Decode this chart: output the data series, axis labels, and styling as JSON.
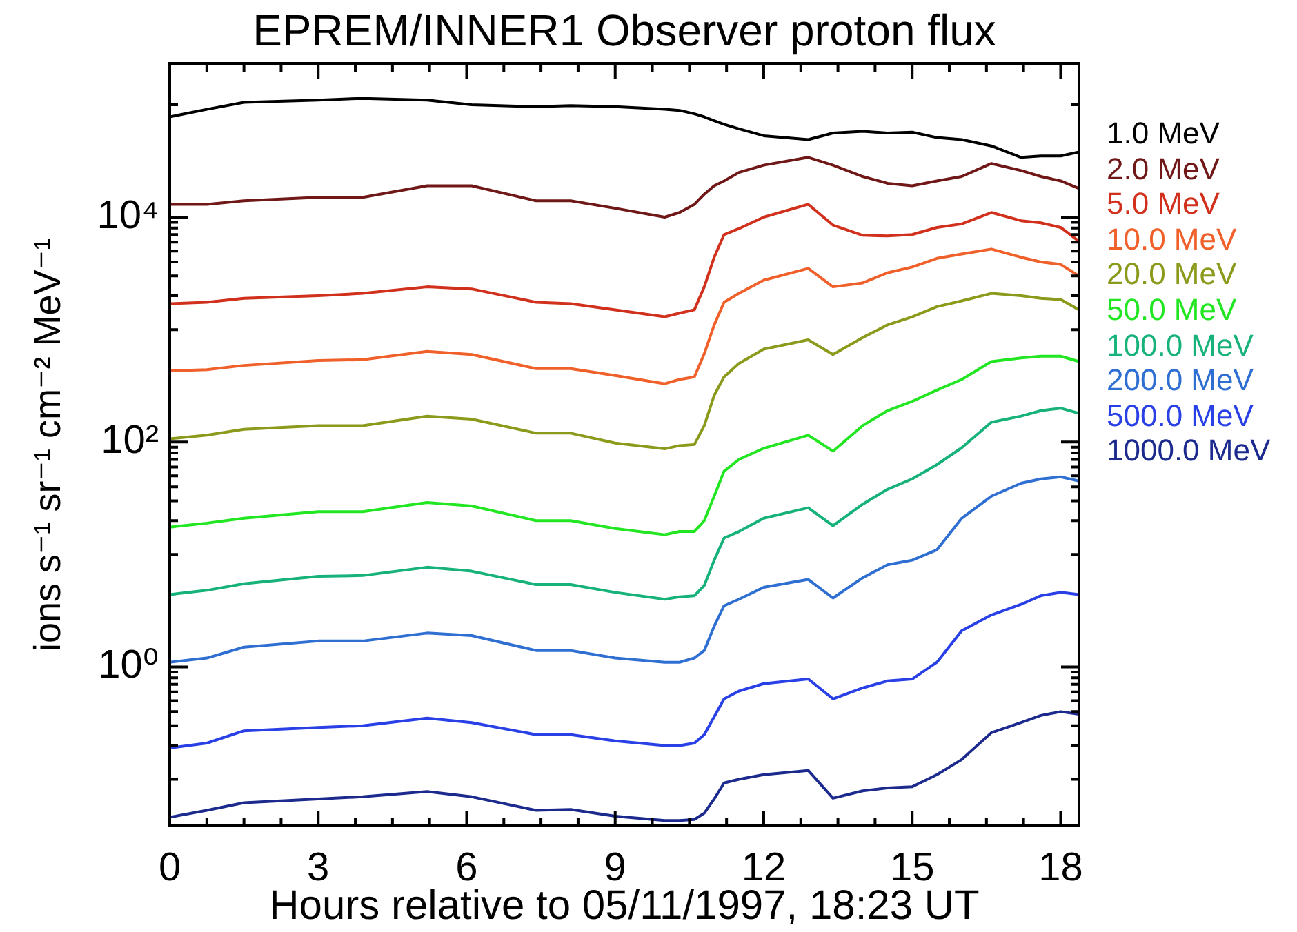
{
  "chart_data": {
    "type": "line",
    "title": "EPREM/INNER1 Observer proton flux",
    "xlabel": "Hours relative to 05/11/1997, 18:23 UT",
    "ylabel": "ions s⁻¹ sr⁻¹ cm⁻² MeV⁻¹",
    "x": [
      0,
      0.75,
      1.5,
      3,
      3.9,
      5.2,
      6.1,
      7.4,
      8.1,
      9,
      10,
      10.3,
      10.6,
      10.8,
      11.0,
      11.2,
      11.5,
      12,
      12.9,
      13.4,
      14,
      14.5,
      15,
      15.5,
      16,
      16.6,
      17.2,
      17.6,
      18,
      18.37
    ],
    "series": [
      {
        "name": "1.0 MeV",
        "color": "#000000",
        "values": [
          78000,
          91000,
          105000,
          110000,
          114000,
          110000,
          100000,
          96000,
          98000,
          96000,
          91000,
          89000,
          83000,
          78000,
          72000,
          67000,
          61000,
          53000,
          49000,
          56000,
          58000,
          56000,
          57000,
          51000,
          49000,
          43000,
          34000,
          35000,
          35000,
          38000
        ]
      },
      {
        "name": "2.0 MeV",
        "color": "#701818",
        "values": [
          13000,
          13000,
          14000,
          15000,
          15000,
          19000,
          19000,
          14000,
          14000,
          12000,
          10000,
          11000,
          13000,
          16000,
          19000,
          21000,
          25000,
          29000,
          34000,
          29000,
          23000,
          20000,
          19000,
          21000,
          23000,
          30000,
          26000,
          23000,
          21000,
          18000
        ]
      },
      {
        "name": "5.0 MeV",
        "color": "#d0301c",
        "values": [
          1700,
          1750,
          1900,
          2000,
          2100,
          2400,
          2300,
          1750,
          1700,
          1500,
          1300,
          1400,
          1500,
          2400,
          4400,
          7000,
          7900,
          10000,
          13000,
          8500,
          6900,
          6800,
          7000,
          8100,
          8700,
          11000,
          9300,
          8900,
          8100,
          6100
        ]
      },
      {
        "name": "10.0 MeV",
        "color": "#f0602a",
        "values": [
          430,
          440,
          480,
          530,
          540,
          640,
          600,
          450,
          450,
          390,
          330,
          360,
          380,
          610,
          1100,
          1750,
          2100,
          2750,
          3500,
          2400,
          2600,
          3200,
          3600,
          4300,
          4700,
          5200,
          4400,
          4000,
          3800,
          3000
        ]
      },
      {
        "name": "20.0 MeV",
        "color": "#8c9a1c",
        "values": [
          107,
          115,
          130,
          140,
          140,
          170,
          160,
          120,
          120,
          98,
          87,
          93,
          95,
          140,
          260,
          380,
          500,
          670,
          810,
          600,
          850,
          1100,
          1300,
          1600,
          1800,
          2100,
          2000,
          1900,
          1850,
          1500
        ]
      },
      {
        "name": "50.0 MeV",
        "color": "#22e622",
        "values": [
          17.5,
          19,
          21,
          24,
          24,
          29,
          27,
          20,
          20,
          17,
          15,
          16,
          16,
          20,
          33,
          55,
          70,
          88,
          115,
          83,
          140,
          190,
          230,
          290,
          360,
          520,
          560,
          580,
          580,
          520
        ]
      },
      {
        "name": "100.0 MeV",
        "color": "#16b27a",
        "values": [
          4.4,
          4.8,
          5.5,
          6.4,
          6.5,
          7.7,
          7.1,
          5.4,
          5.4,
          4.6,
          4.0,
          4.2,
          4.3,
          5.3,
          8.9,
          14,
          16,
          21,
          26,
          18,
          28,
          38,
          47,
          63,
          89,
          150,
          170,
          190,
          200,
          180
        ]
      },
      {
        "name": "200.0 MeV",
        "color": "#2f6fd2",
        "values": [
          1.1,
          1.2,
          1.5,
          1.7,
          1.7,
          2.0,
          1.9,
          1.4,
          1.4,
          1.2,
          1.1,
          1.1,
          1.2,
          1.4,
          2.3,
          3.5,
          4.0,
          5.1,
          6.0,
          4.1,
          6.2,
          8.1,
          8.9,
          11,
          21,
          33,
          43,
          47,
          49,
          45
        ]
      },
      {
        "name": "500.0 MeV",
        "color": "#2840e6",
        "values": [
          0.19,
          0.21,
          0.27,
          0.29,
          0.3,
          0.35,
          0.32,
          0.25,
          0.25,
          0.22,
          0.2,
          0.2,
          0.21,
          0.25,
          0.36,
          0.52,
          0.61,
          0.71,
          0.78,
          0.52,
          0.65,
          0.75,
          0.78,
          1.1,
          2.1,
          2.9,
          3.6,
          4.3,
          4.6,
          4.4
        ]
      },
      {
        "name": "1000.0 MeV",
        "color": "#1c2a8e",
        "values": [
          0.046,
          0.053,
          0.062,
          0.067,
          0.07,
          0.078,
          0.07,
          0.053,
          0.054,
          0.047,
          0.043,
          0.043,
          0.044,
          0.05,
          0.067,
          0.093,
          0.1,
          0.11,
          0.12,
          0.068,
          0.079,
          0.084,
          0.086,
          0.11,
          0.15,
          0.26,
          0.32,
          0.37,
          0.4,
          0.38
        ]
      }
    ],
    "xlim": [
      0,
      18.37
    ],
    "xticks": [
      0,
      {
        "value": 0.75,
        "label": null
      },
      {
        "value": 1.5,
        "label": null
      },
      {
        "value": 2.25,
        "label": null
      },
      3,
      {
        "value": 3.75,
        "label": null
      },
      {
        "value": 4.5,
        "label": null
      },
      {
        "value": 5.25,
        "label": null
      },
      6,
      {
        "value": 6.75,
        "label": null
      },
      {
        "value": 7.5,
        "label": null
      },
      {
        "value": 8.25,
        "label": null
      },
      9,
      {
        "value": 9.75,
        "label": null
      },
      {
        "value": 10.5,
        "label": null
      },
      {
        "value": 11.25,
        "label": null
      },
      12,
      {
        "value": 12.75,
        "label": null
      },
      {
        "value": 13.5,
        "label": null
      },
      {
        "value": 14.25,
        "label": null
      },
      15,
      {
        "value": 15.75,
        "label": null
      },
      {
        "value": 16.5,
        "label": null
      },
      {
        "value": 17.25,
        "label": null
      },
      18
    ],
    "ylim": [
      0.0386,
      233000
    ],
    "yticks": [
      {
        "value": 0.1,
        "label": null
      },
      {
        "value": 0.2,
        "label": null
      },
      {
        "value": 0.3,
        "label": null
      },
      {
        "value": 0.4,
        "label": null
      },
      {
        "value": 0.5,
        "label": null
      },
      {
        "value": 0.6,
        "label": null
      },
      {
        "value": 0.7,
        "label": null
      },
      {
        "value": 0.8,
        "label": null
      },
      {
        "value": 0.9,
        "label": null
      },
      {
        "value": 1,
        "label": "10⁰"
      },
      {
        "value": 10,
        "label": null
      },
      {
        "value": 20,
        "label": null
      },
      {
        "value": 30,
        "label": null
      },
      {
        "value": 40,
        "label": null
      },
      {
        "value": 50,
        "label": null
      },
      {
        "value": 60,
        "label": null
      },
      {
        "value": 70,
        "label": null
      },
      {
        "value": 80,
        "label": null
      },
      {
        "value": 90,
        "label": null
      },
      {
        "value": 100,
        "label": "10²"
      },
      {
        "value": 1000,
        "label": null
      },
      {
        "value": 2000,
        "label": null
      },
      {
        "value": 3000,
        "label": null
      },
      {
        "value": 4000,
        "label": null
      },
      {
        "value": 5000,
        "label": null
      },
      {
        "value": 6000,
        "label": null
      },
      {
        "value": 7000,
        "label": null
      },
      {
        "value": 8000,
        "label": null
      },
      {
        "value": 9000,
        "label": null
      },
      {
        "value": 10000,
        "label": "10⁴"
      },
      {
        "value": 100000,
        "label": null
      }
    ],
    "log": true,
    "grid": false,
    "legend": "top right"
  }
}
